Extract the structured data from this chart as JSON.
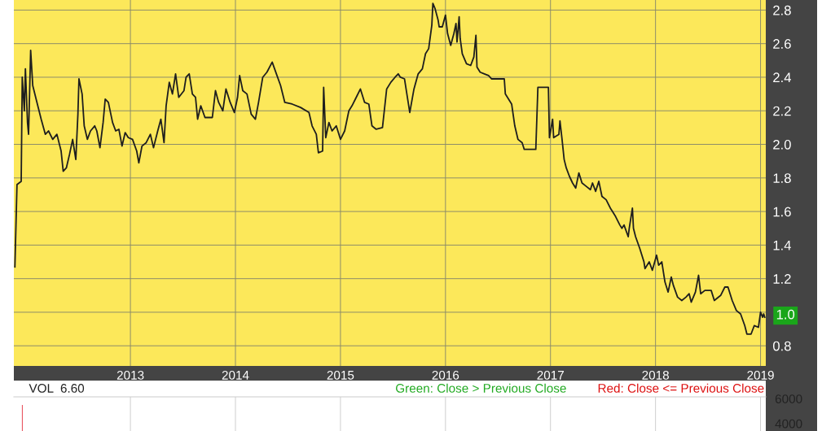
{
  "chart_data": [
    {
      "type": "line",
      "x": [
        2011.9,
        2011.92,
        2011.96,
        2011.97,
        2011.99,
        2012.0,
        2012.02,
        2012.03,
        2012.05,
        2012.07,
        2012.11,
        2012.15,
        2012.19,
        2012.22,
        2012.26,
        2012.3,
        2012.34,
        2012.36,
        2012.39,
        2012.42,
        2012.45,
        2012.48,
        2012.5,
        2012.51,
        2012.54,
        2012.56,
        2012.59,
        2012.62,
        2012.66,
        2012.68,
        2012.71,
        2012.74,
        2012.76,
        2012.79,
        2012.83,
        2012.86,
        2012.89,
        2012.92,
        2012.95,
        2012.98,
        2013.02,
        2013.06,
        2013.08,
        2013.11,
        2013.15,
        2013.19,
        2013.22,
        2013.26,
        2013.29,
        2013.32,
        2013.34,
        2013.37,
        2013.4,
        2013.43,
        2013.46,
        2013.51,
        2013.53,
        2013.56,
        2013.59,
        2013.62,
        2013.64,
        2013.67,
        2013.71,
        2013.78,
        2013.81,
        2013.84,
        2013.88,
        2013.91,
        2013.95,
        2013.99,
        2014.02,
        2014.04,
        2014.07,
        2014.11,
        2014.15,
        2014.19,
        2014.22,
        2014.26,
        2014.3,
        2014.35,
        2014.39,
        2014.43,
        2014.47,
        2014.54,
        2014.62,
        2014.7,
        2014.73,
        2014.77,
        2014.79,
        2014.83,
        2014.84,
        2014.86,
        2014.89,
        2014.92,
        2014.96,
        2015.0,
        2015.04,
        2015.08,
        2015.11,
        2015.15,
        2015.19,
        2015.23,
        2015.27,
        2015.3,
        2015.34,
        2015.4,
        2015.44,
        2015.48,
        2015.52,
        2015.55,
        2015.57,
        2015.61,
        2015.66,
        2015.7,
        2015.74,
        2015.78,
        2015.81,
        2015.84,
        2015.87,
        2015.88,
        2015.9,
        2015.93,
        2015.94,
        2015.97,
        2016.0,
        2016.02,
        2016.05,
        2016.08,
        2016.1,
        2016.11,
        2016.13,
        2016.14,
        2016.16,
        2016.2,
        2016.24,
        2016.27,
        2016.29,
        2016.3,
        2016.33,
        2016.37,
        2016.41,
        2016.44,
        2016.56,
        2016.57,
        2016.63,
        2016.66,
        2016.69,
        2016.73,
        2016.75,
        2016.86,
        2016.88,
        2016.98,
        2016.99,
        2017.02,
        2017.03,
        2017.08,
        2017.09,
        2017.11,
        2017.13,
        2017.15,
        2017.18,
        2017.21,
        2017.24,
        2017.27,
        2017.3,
        2017.34,
        2017.38,
        2017.4,
        2017.43,
        2017.46,
        2017.49,
        2017.53,
        2017.57,
        2017.59,
        2017.62,
        2017.66,
        2017.68,
        2017.7,
        2017.74,
        2017.75,
        2017.78,
        2017.79,
        2017.81,
        2017.85,
        2017.89,
        2017.9,
        2017.94,
        2017.97,
        2018.01,
        2018.03,
        2018.06,
        2018.09,
        2018.12,
        2018.15,
        2018.17,
        2018.21,
        2018.25,
        2018.29,
        2018.32,
        2018.34,
        2018.38,
        2018.41,
        2018.43,
        2018.47,
        2018.53,
        2018.56,
        2018.62,
        2018.66,
        2018.69,
        2018.73,
        2018.77,
        2018.81,
        2018.85,
        2018.87,
        2018.91,
        2018.94,
        2018.98,
        2019.0,
        2019.02,
        2019.03,
        2019.04
      ],
      "series": [
        {
          "color": "#1e1e1e",
          "values": [
            1.27,
            1.76,
            1.78,
            2.4,
            2.2,
            2.45,
            2.13,
            2.06,
            2.56,
            2.35,
            2.25,
            2.15,
            2.06,
            2.08,
            2.03,
            2.06,
            1.96,
            1.84,
            1.86,
            1.94,
            2.03,
            1.91,
            2.18,
            2.39,
            2.3,
            2.11,
            2.03,
            2.08,
            2.11,
            2.08,
            1.98,
            2.13,
            2.27,
            2.25,
            2.13,
            2.08,
            2.09,
            1.99,
            2.07,
            2.04,
            2.03,
            1.96,
            1.89,
            1.99,
            2.01,
            2.06,
            1.98,
            2.08,
            2.15,
            2.01,
            2.23,
            2.37,
            2.3,
            2.42,
            2.28,
            2.32,
            2.4,
            2.42,
            2.3,
            2.28,
            2.15,
            2.23,
            2.16,
            2.16,
            2.32,
            2.25,
            2.2,
            2.33,
            2.25,
            2.19,
            2.28,
            2.41,
            2.32,
            2.3,
            2.18,
            2.15,
            2.25,
            2.4,
            2.43,
            2.49,
            2.42,
            2.35,
            2.25,
            2.24,
            2.22,
            2.19,
            2.11,
            2.06,
            1.95,
            1.96,
            2.34,
            2.04,
            2.13,
            2.08,
            2.11,
            2.03,
            2.08,
            2.2,
            2.23,
            2.28,
            2.33,
            2.25,
            2.24,
            2.11,
            2.09,
            2.1,
            2.33,
            2.37,
            2.4,
            2.42,
            2.4,
            2.39,
            2.19,
            2.33,
            2.42,
            2.45,
            2.54,
            2.57,
            2.71,
            2.84,
            2.81,
            2.74,
            2.7,
            2.7,
            2.77,
            2.66,
            2.59,
            2.66,
            2.72,
            2.61,
            2.76,
            2.63,
            2.54,
            2.48,
            2.47,
            2.52,
            2.65,
            2.46,
            2.43,
            2.42,
            2.41,
            2.39,
            2.39,
            2.3,
            2.24,
            2.11,
            2.03,
            2.01,
            1.97,
            1.97,
            2.34,
            2.34,
            2.04,
            2.15,
            2.04,
            2.06,
            2.14,
            2.03,
            1.91,
            1.86,
            1.81,
            1.77,
            1.74,
            1.83,
            1.77,
            1.75,
            1.73,
            1.77,
            1.72,
            1.78,
            1.69,
            1.67,
            1.62,
            1.6,
            1.57,
            1.52,
            1.5,
            1.52,
            1.45,
            1.5,
            1.62,
            1.5,
            1.45,
            1.38,
            1.3,
            1.26,
            1.3,
            1.25,
            1.34,
            1.28,
            1.3,
            1.18,
            1.12,
            1.21,
            1.16,
            1.09,
            1.07,
            1.09,
            1.11,
            1.06,
            1.12,
            1.22,
            1.11,
            1.13,
            1.13,
            1.07,
            1.1,
            1.15,
            1.15,
            1.07,
            1.01,
            0.99,
            0.92,
            0.87,
            0.87,
            0.92,
            0.91,
            1.0,
            0.97,
            0.99,
            0.97
          ]
        }
      ],
      "xlim": [
        2011.89,
        2019.05
      ],
      "xticks": [
        2013,
        2014,
        2015,
        2016,
        2017,
        2018,
        2019
      ],
      "ylim": [
        0.68,
        2.86
      ],
      "yticks": [
        0.8,
        {
          "value": 1.0,
          "label": null
        },
        1.2,
        1.4,
        1.6,
        1.8,
        {
          "value": 2.0,
          "label": "2.0"
        },
        2.2,
        2.4,
        2.6,
        2.8
      ],
      "grid": true,
      "marker": "none",
      "line_style": "solid",
      "annotations": [
        {
          "text": "1.0",
          "x": 2019.04,
          "y": 0.98
        }
      ]
    },
    {
      "type": "bar",
      "x": [
        2011.97
      ],
      "values": [
        5500
      ],
      "color": "#e01020",
      "xlim": [
        2011.89,
        2019.05
      ],
      "xticks": [
        2013,
        2014,
        2015,
        2016,
        2017,
        2018,
        2019
      ],
      "ylim": [
        3400,
        6150
      ],
      "yticks": [
        4000,
        6000
      ],
      "grid": "x",
      "tick_labels": "y",
      "annotations": [
        "VOL  6.60",
        "Green: Close > Previous Close",
        "Red: Close <= Previous Close"
      ]
    }
  ]
}
